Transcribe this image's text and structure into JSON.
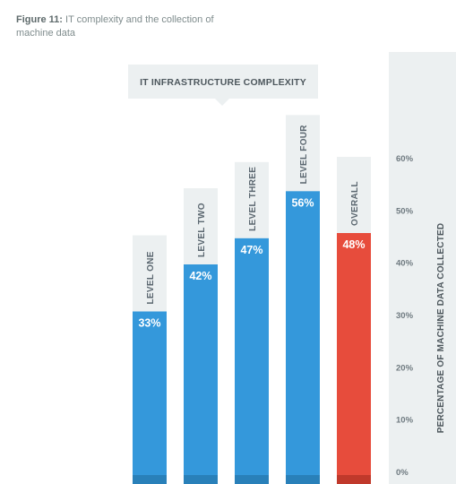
{
  "caption": {
    "label": "Figure 11:",
    "text": " IT complexity and the collection of machine data"
  },
  "chart_data": {
    "type": "bar",
    "group_title": "IT INFRASTRUCTURE COMPLEXITY",
    "categories": [
      "LEVEL ONE",
      "LEVEL TWO",
      "LEVEL THREE",
      "LEVEL FOUR",
      "OVERALL"
    ],
    "values": [
      33,
      42,
      47,
      56,
      48
    ],
    "value_labels": [
      "33%",
      "42%",
      "47%",
      "56%",
      "48%"
    ],
    "ylabel": "PERCENTAGE OF MACHINE DATA COLLECTED",
    "ylim": [
      0,
      60
    ],
    "yticks": [
      {
        "value": 0,
        "label": "0%"
      },
      {
        "value": 10,
        "label": "10%"
      },
      {
        "value": 20,
        "label": "20%"
      },
      {
        "value": 30,
        "label": "30%"
      },
      {
        "value": 40,
        "label": "40%"
      },
      {
        "value": 50,
        "label": "50%"
      },
      {
        "value": 60,
        "label": "60%"
      }
    ],
    "y_axis_position": "right",
    "grid": false,
    "colors": {
      "bar": "#3498db",
      "bar_base": "#2980b9",
      "highlight": "#e74c3c",
      "highlight_base": "#c0392b",
      "backing": "#ecf0f1",
      "text": "#5b6770"
    },
    "highlight_index": 4
  }
}
